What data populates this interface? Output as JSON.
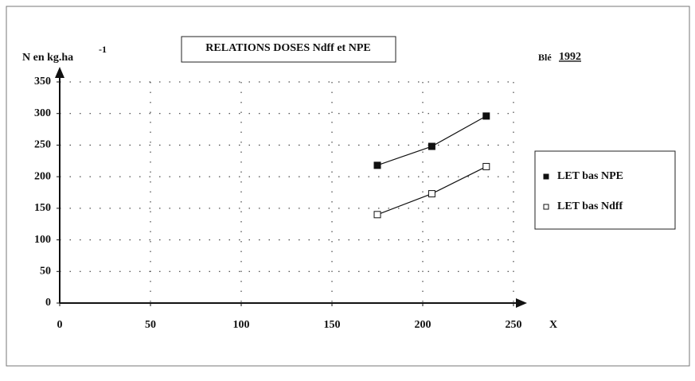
{
  "chart_data": {
    "type": "scatter",
    "title": "RELATIONS DOSES Ndff et NPE",
    "ylabel": "N en kg.ha",
    "ylabel_exponent": "-1",
    "xlabel": "X",
    "annotations": [
      "Blé",
      "1992"
    ],
    "xlim": [
      0,
      250
    ],
    "xticks": [
      0,
      50,
      100,
      150,
      200,
      250
    ],
    "ylim": [
      0,
      350
    ],
    "yticks": [
      0,
      50,
      100,
      150,
      200,
      250,
      300,
      350
    ],
    "grid": true,
    "legend": "right",
    "series": [
      {
        "name": "LET bas NPE",
        "color": "#111111",
        "marker": "filled-square",
        "x": [
          175,
          205,
          235
        ],
        "values": [
          218,
          248,
          296
        ]
      },
      {
        "name": "LET bas Ndff",
        "color": "#111111",
        "marker": "open-square",
        "x": [
          175,
          205,
          235
        ],
        "values": [
          140,
          173,
          216
        ]
      }
    ]
  }
}
